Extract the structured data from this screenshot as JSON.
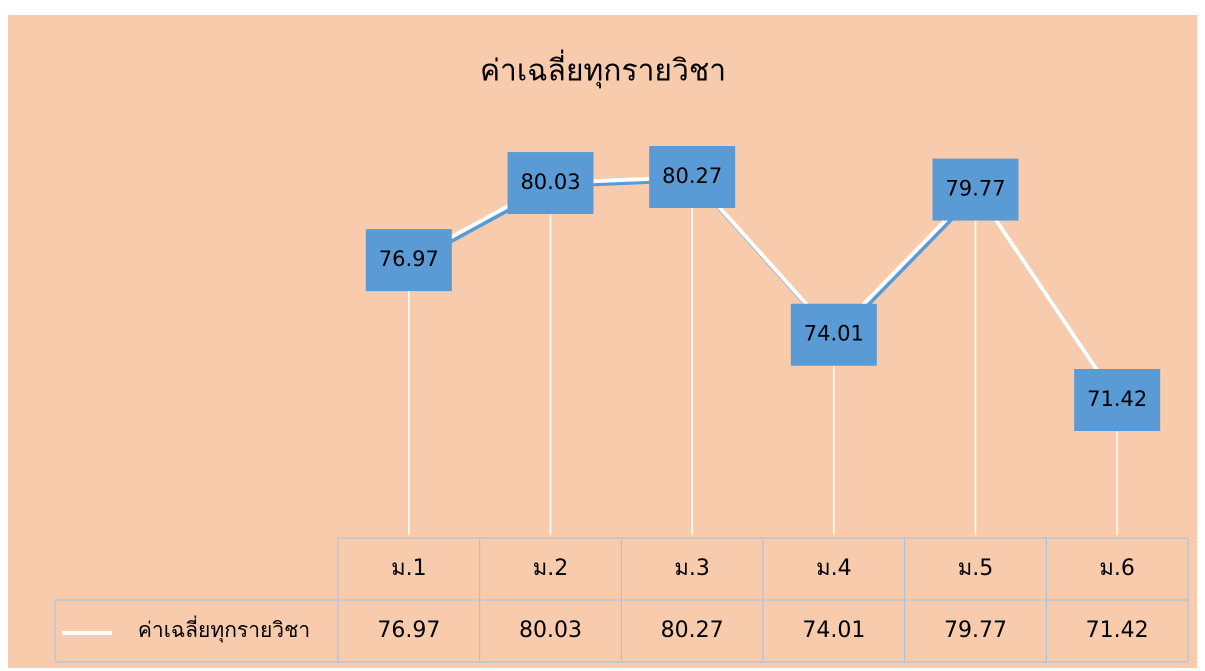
{
  "chart_data": {
    "type": "line",
    "title": "ค่าเฉลี่ยทุกรายวิชา",
    "categories": [
      "ม.1",
      "ม.2",
      "ม.3",
      "ม.4",
      "ม.5",
      "ม.6"
    ],
    "series": [
      {
        "name": "ค่าเฉลี่ยทุกรายวิชา",
        "color": "#ffffff",
        "values": [
          76.97,
          80.03,
          80.27,
          74.01,
          79.77,
          71.42
        ]
      }
    ],
    "label_color": "#5b9bd5",
    "drop_lines": true,
    "data_table": true
  }
}
